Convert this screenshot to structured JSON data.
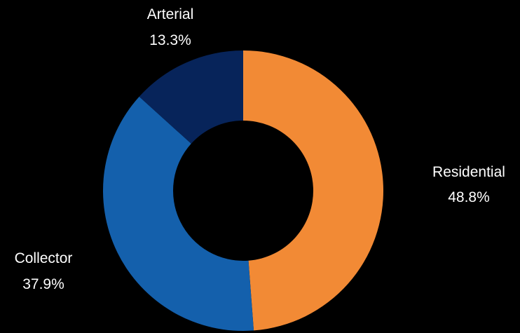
{
  "chart_data": {
    "type": "pie",
    "donut": true,
    "title": "",
    "legend": "none",
    "categories": [
      "Residential",
      "Collector",
      "Arterial"
    ],
    "values": [
      48.8,
      37.9,
      13.3
    ],
    "labels": [
      "48.8%",
      "37.9%",
      "13.3%"
    ],
    "colors": [
      "#F28A35",
      "#1460AC",
      "#07245A"
    ]
  },
  "background": "#000000"
}
